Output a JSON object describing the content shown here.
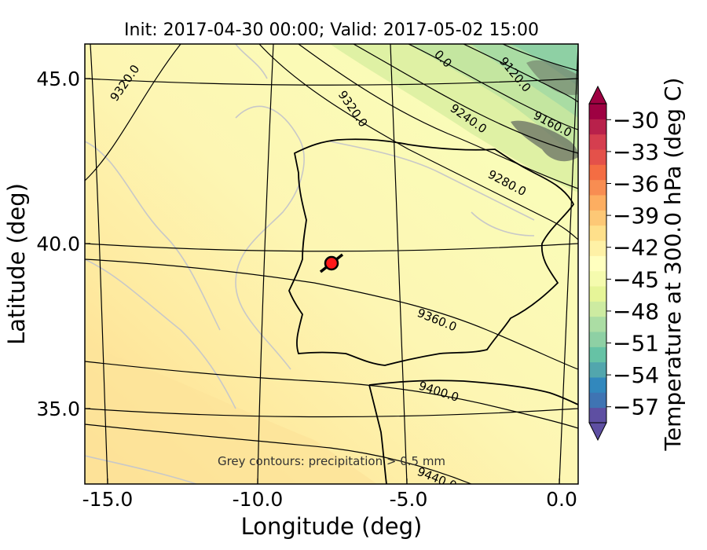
{
  "title": "Init: 2017-04-30 00:00; Valid: 2017-05-02 15:00",
  "chart_data": {
    "type": "map",
    "xlabel": "Longitude (deg)",
    "ylabel": "Latitude (deg)",
    "xlim": [
      -16.0,
      0.3
    ],
    "ylim": [
      32.7,
      46.0
    ],
    "x_ticks": [
      "-15.0",
      "-10.0",
      "-5.0",
      "0.0"
    ],
    "y_ticks": [
      "45.0",
      "40.0",
      "35.0"
    ],
    "height_contours": [
      "9120.0",
      "9160.0",
      "9240.0",
      "9280.0",
      "9320.0",
      "9320.0",
      "9360.0",
      "9400.0",
      "9440.0",
      "0.0"
    ],
    "annotation": "Grey contours: precipitation > 0.5 mm",
    "marker": {
      "lon": -7.6,
      "lat": 39.4
    },
    "colorbar": {
      "label": "Temperature at 300.0 hPa (deg C)",
      "ticks": [
        "−30",
        "−33",
        "−36",
        "−39",
        "−42",
        "−45",
        "−48",
        "−51",
        "−54",
        "−57"
      ],
      "range": [
        -58.5,
        -28.5
      ],
      "colors": [
        "#5e4fa2",
        "#3f74b3",
        "#3288bd",
        "#52a6ad",
        "#66c2a5",
        "#8ed0a4",
        "#abdda4",
        "#cdeba1",
        "#e6f598",
        "#f5fbae",
        "#ffffbf",
        "#fef1a6",
        "#fee08b",
        "#fdc876",
        "#fdae61",
        "#f88d52",
        "#f46d43",
        "#e4514a",
        "#d53e4f",
        "#b8214b",
        "#9e0142"
      ]
    }
  }
}
